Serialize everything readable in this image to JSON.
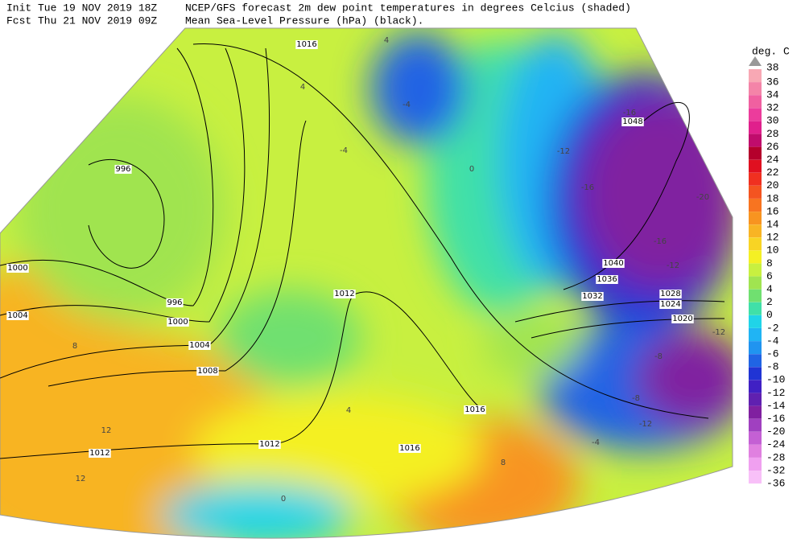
{
  "header": {
    "init": "Init  Tue 19 NOV 2019 18Z",
    "fcst": "Fcst Thu 21 NOV 2019 09Z",
    "title": "NCEP/GFS forecast 2m dew point temperatures in degrees Celcius (shaded)",
    "subtitle": "Mean Sea-Level Pressure (hPa) (black)."
  },
  "legend": {
    "title": "deg. C",
    "top": "38",
    "levels": [
      {
        "label": "36",
        "color": "#f8a8b4"
      },
      {
        "label": "34",
        "color": "#f484a8"
      },
      {
        "label": "32",
        "color": "#f060a0"
      },
      {
        "label": "30",
        "color": "#ec3c9c"
      },
      {
        "label": "28",
        "color": "#e0208c"
      },
      {
        "label": "26",
        "color": "#c00c6c"
      },
      {
        "label": "24",
        "color": "#b4002c"
      },
      {
        "label": "22",
        "color": "#e01020"
      },
      {
        "label": "20",
        "color": "#f03020"
      },
      {
        "label": "18",
        "color": "#f45420"
      },
      {
        "label": "16",
        "color": "#f87420"
      },
      {
        "label": "14",
        "color": "#f89420"
      },
      {
        "label": "12",
        "color": "#f8b424"
      },
      {
        "label": "10",
        "color": "#f8d424"
      },
      {
        "label": "8",
        "color": "#f4f024"
      },
      {
        "label": "6",
        "color": "#c8f040"
      },
      {
        "label": "4",
        "color": "#a0e450"
      },
      {
        "label": "2",
        "color": "#70e070"
      },
      {
        "label": "0",
        "color": "#40e0a8"
      },
      {
        "label": "-2",
        "color": "#20d4e8"
      },
      {
        "label": "-4",
        "color": "#20b4f4"
      },
      {
        "label": "-6",
        "color": "#2094f0"
      },
      {
        "label": "-8",
        "color": "#2064e4"
      },
      {
        "label": "-10",
        "color": "#2034d4"
      },
      {
        "label": "-12",
        "color": "#4020c4"
      },
      {
        "label": "-14",
        "color": "#6020b0"
      },
      {
        "label": "-16",
        "color": "#8020a0"
      },
      {
        "label": "-20",
        "color": "#a040c0"
      },
      {
        "label": "-24",
        "color": "#c460d4"
      },
      {
        "label": "-28",
        "color": "#e080e0"
      },
      {
        "label": "-32",
        "color": "#f0a0f0"
      },
      {
        "label": "-36",
        "color": "#f8c0f8"
      }
    ]
  },
  "isobar_labels": [
    "1016",
    "996",
    "1000",
    "1004",
    "996",
    "1000",
    "1004",
    "1008",
    "1012",
    "1012",
    "1012",
    "1016",
    "1016",
    "1048",
    "1040",
    "1036",
    "1032",
    "1028",
    "1024",
    "1020"
  ],
  "dewpoint_labels": [
    "-16",
    "-12",
    "-16",
    "-20",
    "-16",
    "-12",
    "-12",
    "-8",
    "-8",
    "-12",
    "-4",
    "-4",
    "-4",
    "0",
    "4",
    "4",
    "8",
    "12",
    "12",
    "0",
    "4",
    "8"
  ]
}
